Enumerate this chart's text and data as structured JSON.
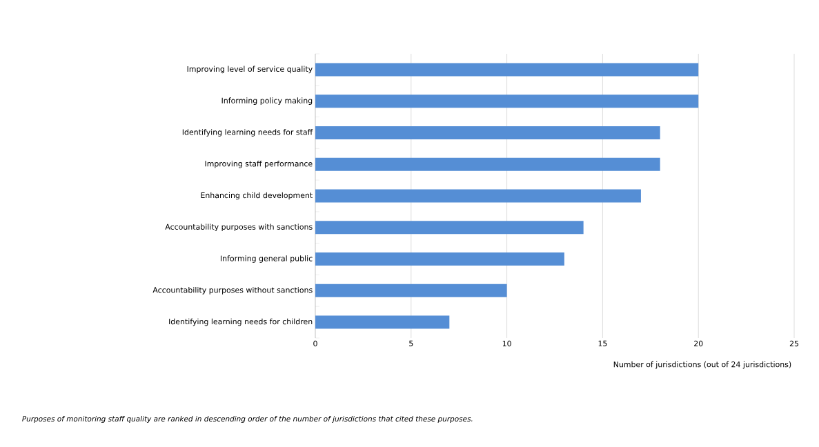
{
  "chart_data": {
    "type": "bar",
    "orientation": "horizontal",
    "categories": [
      "Improving level of service quality",
      "Informing policy making",
      "Identifying learning needs for staff",
      "Improving staff performance",
      "Enhancing child development",
      "Accountability purposes with sanctions",
      "Informing general public",
      "Accountability purposes without sanctions",
      "Identifying learning needs for children"
    ],
    "values": [
      20,
      20,
      18,
      18,
      17,
      14,
      13,
      10,
      7
    ],
    "color": "#558ed5",
    "xlim": [
      0,
      25
    ],
    "xticks": [
      0,
      5,
      10,
      15,
      20,
      25
    ],
    "xlabel": "Number of jurisdictions (out of 24  jurisdictions)",
    "grid": "x",
    "annotations": [
      "Purposes of monitoring staff quality are ranked in descending order of the number of jurisdictions that cited these  purposes."
    ]
  }
}
